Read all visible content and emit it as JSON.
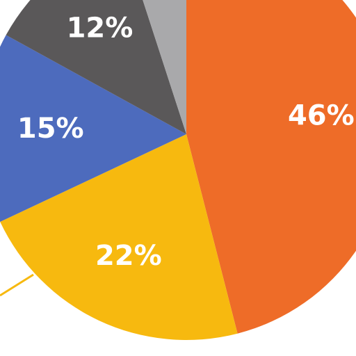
{
  "chart_data": {
    "type": "pie",
    "values": [
      46,
      22,
      15,
      12,
      5
    ],
    "value_labels": [
      "46%",
      "22%",
      "15%",
      "12%",
      null
    ],
    "colors": [
      "#ee6c28",
      "#f7b90f",
      "#4d6bbd",
      "#5a5859",
      "#a9a9ab"
    ],
    "start_angle": 0,
    "direction": "clockwise"
  }
}
